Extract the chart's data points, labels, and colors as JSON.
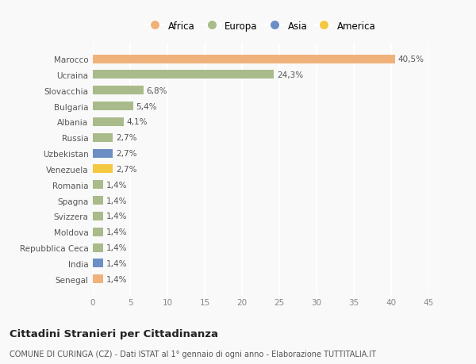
{
  "countries": [
    "Marocco",
    "Ucraina",
    "Slovacchia",
    "Bulgaria",
    "Albania",
    "Russia",
    "Uzbekistan",
    "Venezuela",
    "Romania",
    "Spagna",
    "Svizzera",
    "Moldova",
    "Repubblica Ceca",
    "India",
    "Senegal"
  ],
  "values": [
    40.5,
    24.3,
    6.8,
    5.4,
    4.1,
    2.7,
    2.7,
    2.7,
    1.4,
    1.4,
    1.4,
    1.4,
    1.4,
    1.4,
    1.4
  ],
  "labels": [
    "40,5%",
    "24,3%",
    "6,8%",
    "5,4%",
    "4,1%",
    "2,7%",
    "2,7%",
    "2,7%",
    "1,4%",
    "1,4%",
    "1,4%",
    "1,4%",
    "1,4%",
    "1,4%",
    "1,4%"
  ],
  "colors": [
    "#f0b27a",
    "#a9bb8a",
    "#a9bb8a",
    "#a9bb8a",
    "#a9bb8a",
    "#a9bb8a",
    "#6b8fc4",
    "#f5c842",
    "#a9bb8a",
    "#a9bb8a",
    "#a9bb8a",
    "#a9bb8a",
    "#a9bb8a",
    "#6b8fc4",
    "#f0b27a"
  ],
  "legend_labels": [
    "Africa",
    "Europa",
    "Asia",
    "America"
  ],
  "legend_colors": [
    "#f0b27a",
    "#a9bb8a",
    "#6b8fc4",
    "#f5c842"
  ],
  "xlim": [
    0,
    45
  ],
  "xticks": [
    0,
    5,
    10,
    15,
    20,
    25,
    30,
    35,
    40,
    45
  ],
  "title": "Cittadini Stranieri per Cittadinanza",
  "subtitle": "COMUNE DI CURINGA (CZ) - Dati ISTAT al 1° gennaio di ogni anno - Elaborazione TUTTITALIA.IT",
  "bg_color": "#f9f9f9",
  "grid_color": "#ffffff",
  "bar_height": 0.55
}
